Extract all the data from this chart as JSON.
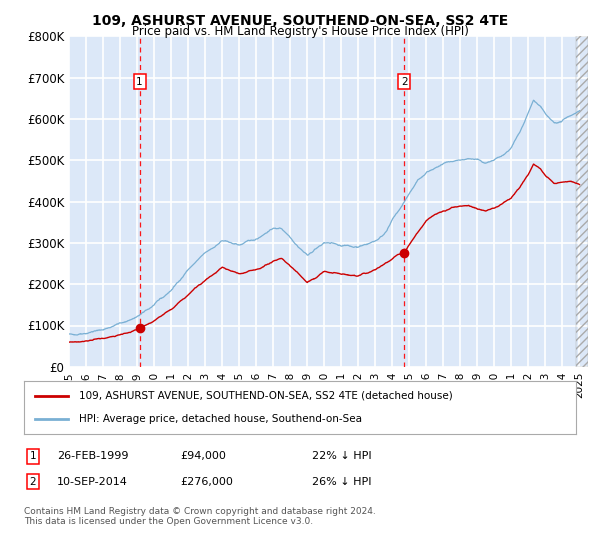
{
  "title": "109, ASHURST AVENUE, SOUTHEND-ON-SEA, SS2 4TE",
  "subtitle": "Price paid vs. HM Land Registry's House Price Index (HPI)",
  "xlim_start": 1995.0,
  "xlim_end": 2025.5,
  "ylim": [
    0,
    800000
  ],
  "yticks": [
    0,
    100000,
    200000,
    300000,
    400000,
    500000,
    600000,
    700000,
    800000
  ],
  "ytick_labels": [
    "£0",
    "£100K",
    "£200K",
    "£300K",
    "£400K",
    "£500K",
    "£600K",
    "£700K",
    "£800K"
  ],
  "background_color": "#dce8f8",
  "grid_color": "#ffffff",
  "sale1_date": 1999.15,
  "sale1_price": 94000,
  "sale2_date": 2014.71,
  "sale2_price": 276000,
  "sale_marker_color": "#cc0000",
  "sale_line_color": "#cc0000",
  "hpi_line_color": "#7ab0d4",
  "legend_entry1": "109, ASHURST AVENUE, SOUTHEND-ON-SEA, SS2 4TE (detached house)",
  "legend_entry2": "HPI: Average price, detached house, Southend-on-Sea",
  "footnote": "Contains HM Land Registry data © Crown copyright and database right 2024.\nThis data is licensed under the Open Government Licence v3.0.",
  "xticks": [
    1995,
    1996,
    1997,
    1998,
    1999,
    2000,
    2001,
    2002,
    2003,
    2004,
    2005,
    2006,
    2007,
    2008,
    2009,
    2010,
    2011,
    2012,
    2013,
    2014,
    2015,
    2016,
    2017,
    2018,
    2019,
    2020,
    2021,
    2022,
    2023,
    2024,
    2025
  ],
  "hpi_key_points": [
    [
      1995.0,
      78000
    ],
    [
      1996.0,
      82000
    ],
    [
      1997.0,
      90000
    ],
    [
      1998.0,
      105000
    ],
    [
      1999.0,
      120000
    ],
    [
      2000.0,
      150000
    ],
    [
      2001.0,
      185000
    ],
    [
      2002.0,
      235000
    ],
    [
      2003.0,
      275000
    ],
    [
      2004.0,
      305000
    ],
    [
      2005.0,
      295000
    ],
    [
      2006.0,
      310000
    ],
    [
      2007.0,
      335000
    ],
    [
      2007.5,
      335000
    ],
    [
      2008.0,
      315000
    ],
    [
      2008.5,
      290000
    ],
    [
      2009.0,
      270000
    ],
    [
      2009.5,
      285000
    ],
    [
      2010.0,
      300000
    ],
    [
      2011.0,
      295000
    ],
    [
      2012.0,
      290000
    ],
    [
      2013.0,
      305000
    ],
    [
      2013.5,
      320000
    ],
    [
      2014.0,
      355000
    ],
    [
      2014.5,
      385000
    ],
    [
      2015.0,
      420000
    ],
    [
      2015.5,
      450000
    ],
    [
      2016.0,
      470000
    ],
    [
      2016.5,
      480000
    ],
    [
      2017.0,
      490000
    ],
    [
      2017.5,
      495000
    ],
    [
      2018.0,
      500000
    ],
    [
      2018.5,
      505000
    ],
    [
      2019.0,
      500000
    ],
    [
      2019.5,
      495000
    ],
    [
      2020.0,
      500000
    ],
    [
      2020.5,
      510000
    ],
    [
      2021.0,
      530000
    ],
    [
      2021.5,
      570000
    ],
    [
      2022.0,
      615000
    ],
    [
      2022.3,
      645000
    ],
    [
      2022.7,
      630000
    ],
    [
      2023.0,
      610000
    ],
    [
      2023.5,
      590000
    ],
    [
      2024.0,
      595000
    ],
    [
      2024.5,
      610000
    ],
    [
      2025.0,
      620000
    ]
  ],
  "prop_key_points": [
    [
      1995.0,
      60000
    ],
    [
      1996.0,
      63000
    ],
    [
      1997.0,
      68000
    ],
    [
      1998.0,
      78000
    ],
    [
      1999.0,
      88000
    ],
    [
      1999.15,
      94000
    ],
    [
      2000.0,
      112000
    ],
    [
      2001.0,
      140000
    ],
    [
      2002.0,
      175000
    ],
    [
      2003.0,
      210000
    ],
    [
      2004.0,
      240000
    ],
    [
      2005.0,
      225000
    ],
    [
      2006.0,
      235000
    ],
    [
      2007.0,
      255000
    ],
    [
      2007.5,
      262000
    ],
    [
      2008.0,
      245000
    ],
    [
      2008.5,
      225000
    ],
    [
      2009.0,
      205000
    ],
    [
      2009.5,
      215000
    ],
    [
      2010.0,
      230000
    ],
    [
      2011.0,
      225000
    ],
    [
      2012.0,
      220000
    ],
    [
      2013.0,
      235000
    ],
    [
      2013.5,
      248000
    ],
    [
      2014.0,
      262000
    ],
    [
      2014.5,
      272000
    ],
    [
      2014.71,
      276000
    ],
    [
      2015.0,
      295000
    ],
    [
      2015.5,
      325000
    ],
    [
      2016.0,
      355000
    ],
    [
      2016.5,
      370000
    ],
    [
      2017.0,
      378000
    ],
    [
      2017.5,
      385000
    ],
    [
      2018.0,
      388000
    ],
    [
      2018.5,
      390000
    ],
    [
      2019.0,
      382000
    ],
    [
      2019.5,
      378000
    ],
    [
      2020.0,
      385000
    ],
    [
      2020.5,
      395000
    ],
    [
      2021.0,
      410000
    ],
    [
      2021.5,
      435000
    ],
    [
      2022.0,
      465000
    ],
    [
      2022.3,
      490000
    ],
    [
      2022.7,
      478000
    ],
    [
      2023.0,
      462000
    ],
    [
      2023.5,
      445000
    ],
    [
      2024.0,
      445000
    ],
    [
      2024.5,
      450000
    ],
    [
      2025.0,
      440000
    ]
  ]
}
